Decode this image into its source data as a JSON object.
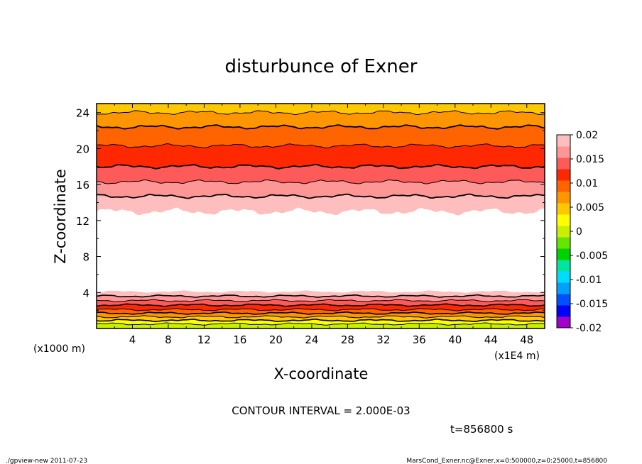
{
  "chart_data": {
    "type": "heatmap",
    "title": "disturbunce of Exner",
    "xlabel": "X-coordinate",
    "ylabel": "Z-coordinate",
    "x_unit_label": "(x1E4 m)",
    "y_unit_label": "(x1000 m)",
    "xlim": [
      0,
      50
    ],
    "ylim": [
      0,
      25
    ],
    "x_ticks": [
      4,
      8,
      12,
      16,
      20,
      24,
      28,
      32,
      36,
      40,
      44,
      48
    ],
    "y_ticks": [
      4,
      8,
      12,
      16,
      20,
      24
    ],
    "contour_interval_text": "CONTOUR INTERVAL = 2.000E-03",
    "time_text": "t=856800 s",
    "colorbar": {
      "ticks": [
        "0.02",
        "0.015",
        "0.01",
        "0.005",
        "0",
        "-0.005",
        "-0.01",
        "-0.015",
        "-0.02"
      ],
      "tick_values": [
        0.02,
        0.015,
        0.01,
        0.005,
        0,
        -0.005,
        -0.01,
        -0.015,
        -0.02
      ],
      "min": -0.02,
      "max": 0.02,
      "step": 0.0025,
      "colors": [
        "#a000c8",
        "#0000ff",
        "#0050ff",
        "#00a0ff",
        "#00dcff",
        "#00e6a0",
        "#00d200",
        "#64e600",
        "#c8f000",
        "#ffff00",
        "#ffc800",
        "#ff9600",
        "#ff6400",
        "#ff2800",
        "#ff5a5a",
        "#ff9696",
        "#ffbebe"
      ]
    },
    "bands_top_region": [
      {
        "level": 0.0025,
        "z": 13.0,
        "color": "#ffbebe"
      },
      {
        "level": 0.005,
        "z": 14.7,
        "color": "#ff9696"
      },
      {
        "level": 0.0075,
        "z": 16.3,
        "color": "#ff5a5a"
      },
      {
        "level": 0.01,
        "z": 18.0,
        "color": "#ff2800"
      },
      {
        "level": 0.0125,
        "z": 20.3,
        "color": "#ff6400"
      },
      {
        "level": 0.015,
        "z": 22.4,
        "color": "#ff9600"
      },
      {
        "level": 0.0175,
        "z": 24.0,
        "color": "#ffc800"
      }
    ],
    "bands_bottom_region": [
      {
        "level": 0.0025,
        "z": 4.1,
        "color": "#ffbebe"
      },
      {
        "level": 0.005,
        "z": 3.6,
        "color": "#ff9696"
      },
      {
        "level": 0.0075,
        "z": 3.1,
        "color": "#ff5a5a"
      },
      {
        "level": 0.01,
        "z": 2.6,
        "color": "#ff2800"
      },
      {
        "level": 0.0125,
        "z": 2.1,
        "color": "#ff6400"
      },
      {
        "level": 0.015,
        "z": 1.7,
        "color": "#ff9600"
      },
      {
        "level": 0.0175,
        "z": 1.3,
        "color": "#ffc800"
      },
      {
        "level": 0.019,
        "z": 0.9,
        "color": "#ffff00"
      },
      {
        "level": 0.02,
        "z": 0.5,
        "color": "#c8f000"
      }
    ]
  },
  "footer": {
    "left": "./gpview-new   2011-07-23",
    "right": "MarsCond_Exner.nc@Exner,x=0:500000,z=0:25000,t=856800"
  }
}
